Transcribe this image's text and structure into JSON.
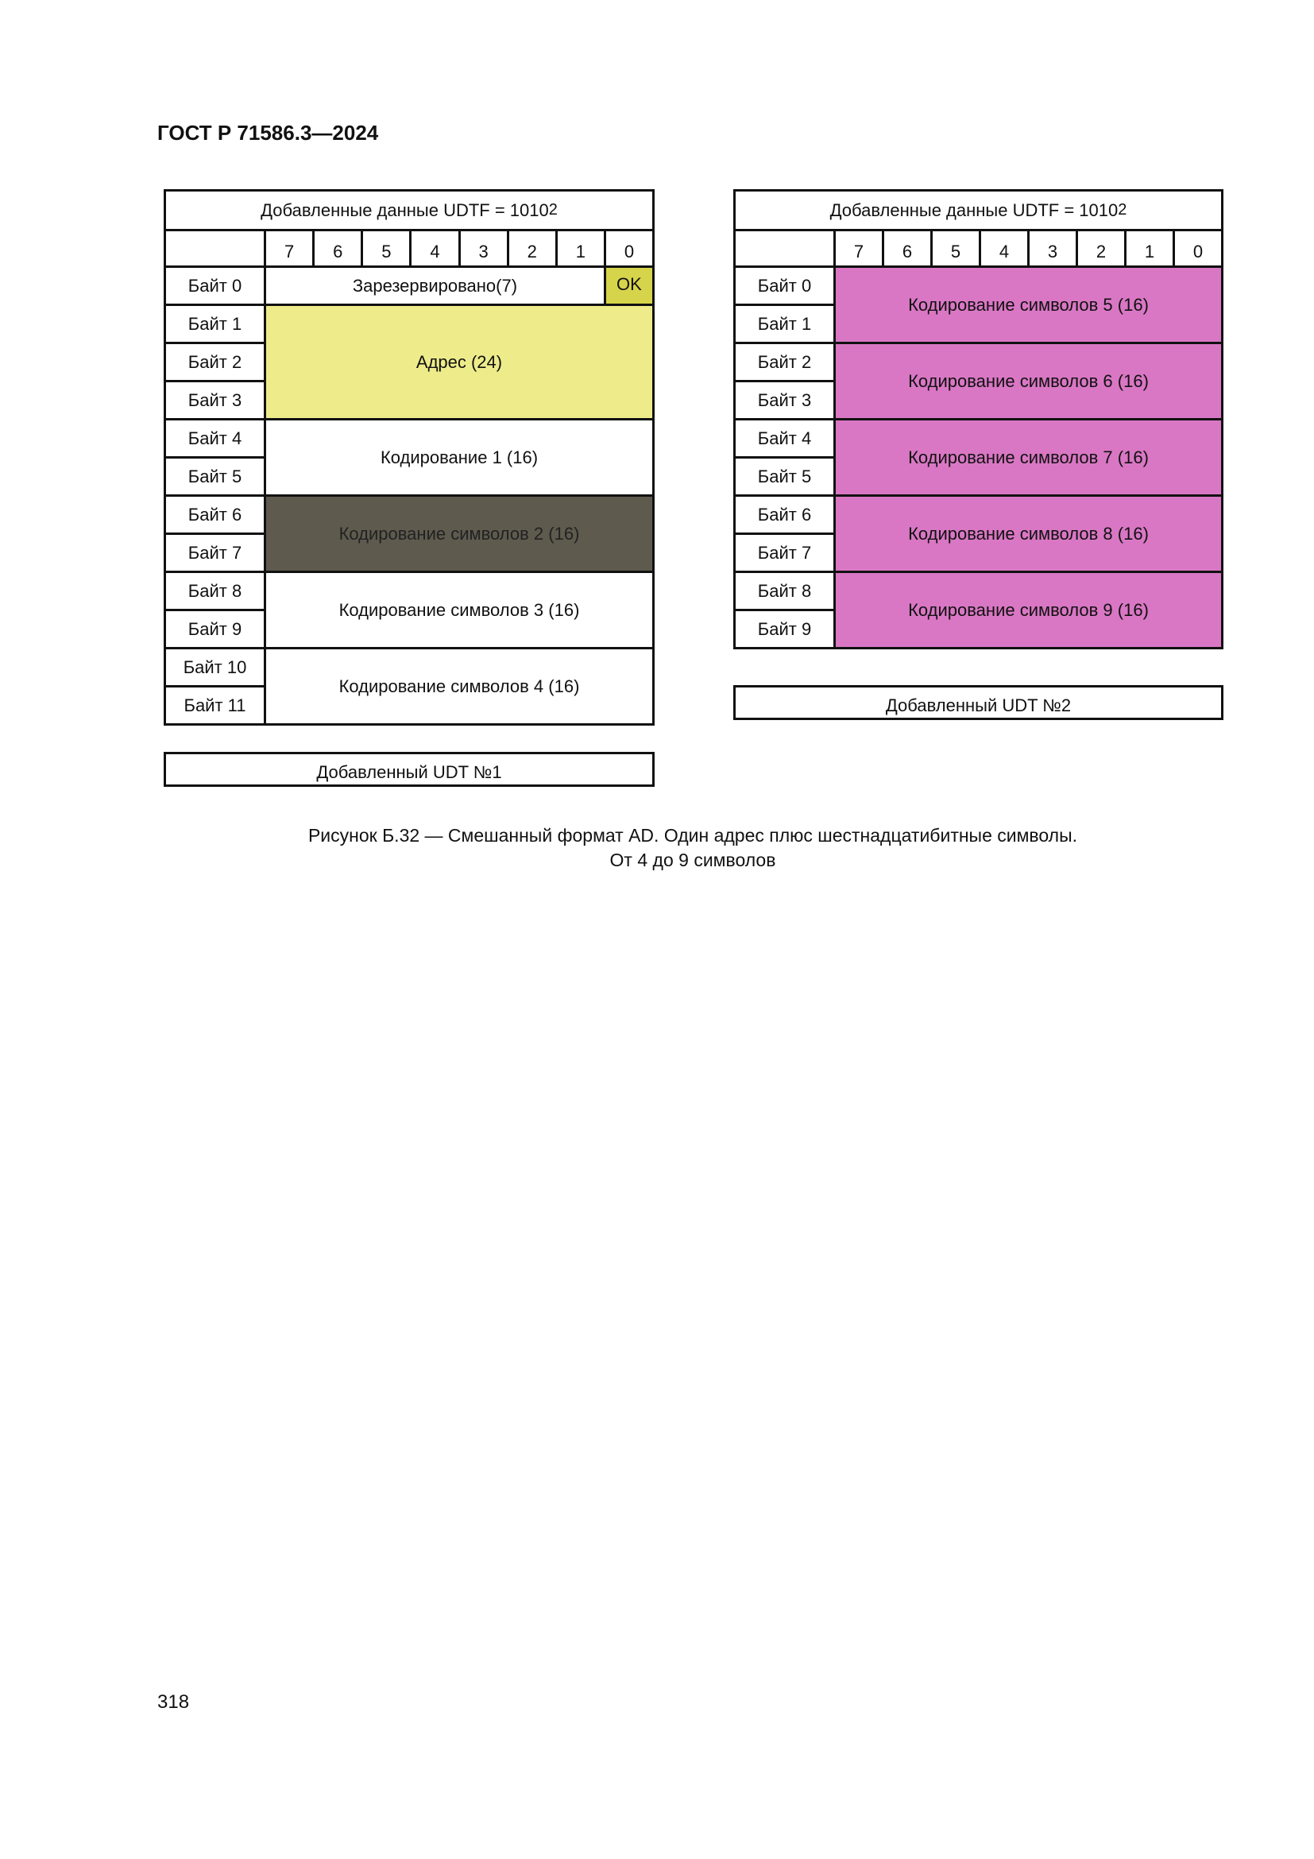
{
  "header": "ГОСТ Р 71586.3—2024",
  "page_number": "318",
  "bits": [
    "7",
    "6",
    "5",
    "4",
    "3",
    "2",
    "1",
    "0"
  ],
  "left_table": {
    "title": "Добавленные данные UDTF = 1010",
    "title_sub": "2",
    "bytes": [
      "Байт 0",
      "Байт 1",
      "Байт 2",
      "Байт 3",
      "Байт 4",
      "Байт 5",
      "Байт 6",
      "Байт 7",
      "Байт 8",
      "Байт 9",
      "Байт 10",
      "Байт 11"
    ],
    "fields": [
      {
        "label": "Зарезервировано(7)",
        "byte_start": 0,
        "byte_span": 1,
        "bit_start": 0,
        "bit_span": 7,
        "color": "#ffffff"
      },
      {
        "label": "OK",
        "byte_start": 0,
        "byte_span": 1,
        "bit_start": 7,
        "bit_span": 1,
        "color": "#d6d44a"
      },
      {
        "label": "Адрес (24)",
        "byte_start": 1,
        "byte_span": 3,
        "bit_start": 0,
        "bit_span": 8,
        "color": "#eeec8a"
      },
      {
        "label": "Кодирование 1 (16)",
        "byte_start": 4,
        "byte_span": 2,
        "bit_start": 0,
        "bit_span": 8,
        "color": "#ffffff"
      },
      {
        "label": "Кодирование символов 2 (16)",
        "byte_start": 6,
        "byte_span": 2,
        "bit_start": 0,
        "bit_span": 8,
        "color": "#5e5a4e"
      },
      {
        "label": "Кодирование символов 3 (16)",
        "byte_start": 8,
        "byte_span": 2,
        "bit_start": 0,
        "bit_span": 8,
        "color": "#ffffff"
      },
      {
        "label": "Кодирование символов 4 (16)",
        "byte_start": 10,
        "byte_span": 2,
        "bit_start": 0,
        "bit_span": 8,
        "color": "#ffffff"
      }
    ],
    "udt": "Добавленный UDT №1"
  },
  "right_table": {
    "title": "Добавленные данные UDTF = 1010",
    "title_sub": "2",
    "bytes": [
      "Байт 0",
      "Байт 1",
      "Байт 2",
      "Байт 3",
      "Байт 4",
      "Байт 5",
      "Байт 6",
      "Байт 7",
      "Байт 8",
      "Байт 9"
    ],
    "fields": [
      {
        "label": "Кодирование символов 5 (16)",
        "byte_start": 0,
        "byte_span": 2,
        "bit_start": 0,
        "bit_span": 8,
        "color": "#d977c4"
      },
      {
        "label": "Кодирование символов 6 (16)",
        "byte_start": 2,
        "byte_span": 2,
        "bit_start": 0,
        "bit_span": 8,
        "color": "#d977c4"
      },
      {
        "label": "Кодирование символов 7 (16)",
        "byte_start": 4,
        "byte_span": 2,
        "bit_start": 0,
        "bit_span": 8,
        "color": "#d977c4"
      },
      {
        "label": "Кодирование символов 8 (16)",
        "byte_start": 6,
        "byte_span": 2,
        "bit_start": 0,
        "bit_span": 8,
        "color": "#d977c4"
      },
      {
        "label": "Кодирование символов 9 (16)",
        "byte_start": 8,
        "byte_span": 2,
        "bit_start": 0,
        "bit_span": 8,
        "color": "#d977c4"
      }
    ],
    "udt": "Добавленный UDT №2"
  },
  "caption": {
    "line1": "Рисунок Б.32 — Смешанный формат AD. Один адрес плюс шестнадцатибитные символы.",
    "line2": "От 4 до 9 символов"
  }
}
